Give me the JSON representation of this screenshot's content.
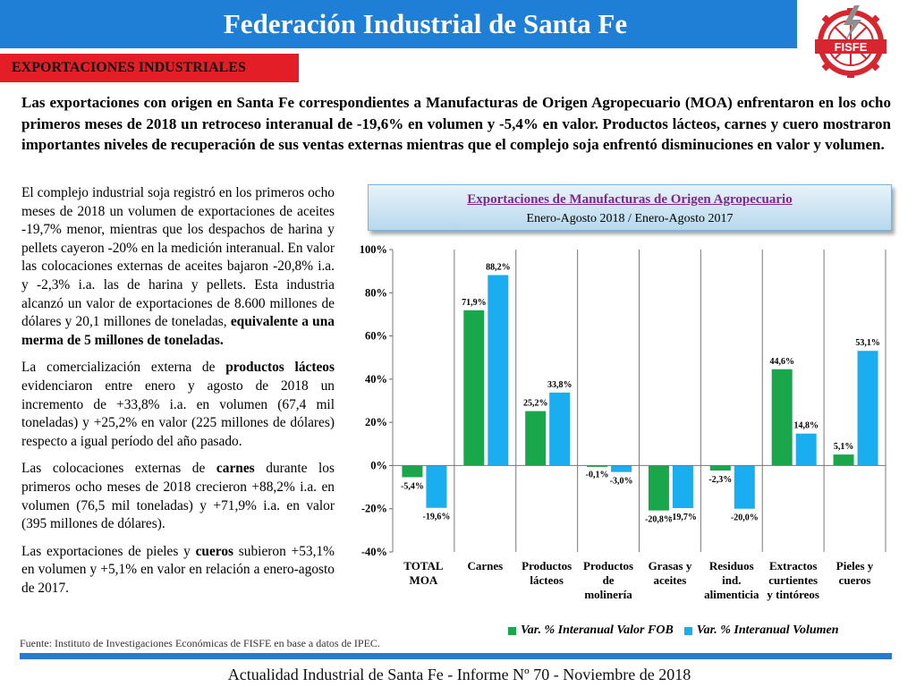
{
  "header": {
    "title": "Federación Industrial de Santa Fe",
    "logo_text": "FISFE",
    "colors": {
      "title_bar": "#1f7fd6",
      "section_tag": "#e41e26",
      "logo_red": "#d7262f",
      "logo_gray": "#9a9a9a"
    }
  },
  "section_tag": "EXPORTACIONES INDUSTRIALES",
  "intro": "Las exportaciones con origen en Santa Fe correspondientes a Manufacturas de Origen Agropecuario (MOA) enfrentaron en los ocho primeros meses de 2018 un retroceso interanual de -19,6% en volumen y -5,4% en valor. Productos lácteos, carnes y cuero mostraron importantes niveles de recuperación de sus ventas externas mientras que el complejo soja enfrentó disminuciones en valor y volumen.",
  "paragraphs": [
    {
      "a": "El complejo industrial soja registró en los primeros ocho meses de 2018 un volumen de exportaciones de aceites -19,7% menor, mientras que los despachos de harina y pellets cayeron -20% en la medición interanual. En valor las colocaciones externas de aceites bajaron -20,8% i.a. y -2,3% i.a. las de harina y pellets. Esta industria alcanzó un valor de exportaciones de 8.600 millones de dólares y 20,1 millones de toneladas, ",
      "b": "equivalente a una merma de 5 millones de toneladas.",
      "c": ""
    },
    {
      "a": "La comercialización externa de ",
      "b": "productos lácteos",
      "c": " evidenciaron entre enero y agosto de 2018 un incremento de +33,8% i.a. en volumen (67,4 mil toneladas) y +25,2% en valor (225 millones de dólares) respecto a igual período del año pasado."
    },
    {
      "a": "Las colocaciones externas de ",
      "b": "carnes",
      "c": " durante los primeros ocho meses de 2018 crecieron +88,2% i.a. en volumen (76,5 mil toneladas) y +71,9% i.a. en valor (395 millones de dólares)."
    },
    {
      "a": "Las exportaciones de pieles y ",
      "b": "cueros",
      "c": " subieron +53,1% en volumen y +5,1% en valor en relación a enero-agosto de 2017."
    }
  ],
  "chart_data": {
    "type": "bar",
    "title": "Exportaciones de Manufacturas de Origen Agropecuario",
    "subtitle": "Enero-Agosto 2018 / Enero-Agosto 2017",
    "categories": [
      [
        "TOTAL",
        "MOA"
      ],
      [
        "Carnes"
      ],
      [
        "Productos",
        "lácteos"
      ],
      [
        "Productos",
        "de",
        "molinería"
      ],
      [
        "Grasas y",
        "aceites"
      ],
      [
        "Residuos",
        "ind.",
        "alimenticia"
      ],
      [
        "Extractos",
        "curtientes",
        "y tintóreos"
      ],
      [
        "Pieles y",
        "cueros"
      ]
    ],
    "series": [
      {
        "name": "Var. % Interanual Valor FOB",
        "color": "#1aa64a",
        "values": [
          -5.4,
          71.9,
          25.2,
          -0.1,
          -20.8,
          -2.3,
          44.6,
          5.1
        ],
        "labels": [
          "-5,4%",
          "71,9%",
          "25,2%",
          "-0,1%",
          "-20,8%",
          "-2,3%",
          "44,6%",
          "5,1%"
        ]
      },
      {
        "name": "Var. % Interanual Volumen",
        "color": "#1aaef0",
        "values": [
          -19.6,
          88.2,
          33.8,
          -3.0,
          -19.7,
          -20.0,
          14.8,
          53.1
        ],
        "labels": [
          "-19,6%",
          "88,2%",
          "33,8%",
          "-3,0%",
          "-19,7%",
          "-20,0%",
          "14,8%",
          "53,1%"
        ]
      }
    ],
    "ylim": [
      -40,
      100
    ],
    "yticks": [
      -40,
      -20,
      0,
      20,
      40,
      60,
      80,
      100
    ],
    "ytick_labels": [
      "-40%",
      "-20%",
      "0%",
      "20%",
      "40%",
      "60%",
      "80%",
      "100%"
    ],
    "grid": "vertical category separators",
    "legend": "bottom"
  },
  "source": "Fuente: Instituto de Investigaciones Económicas de FISFE en base a datos de IPEC.",
  "footer": "Actualidad Industrial de Santa Fe - Informe Nº 70 - Noviembre de 2018"
}
